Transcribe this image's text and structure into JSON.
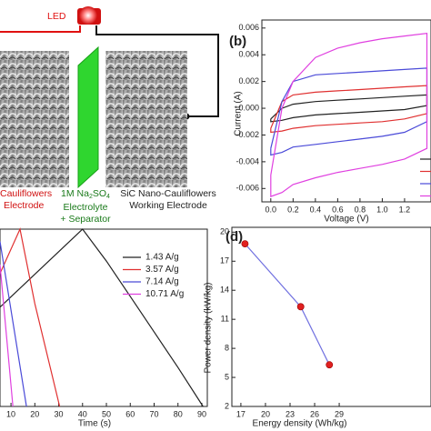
{
  "schematic": {
    "led": "LED",
    "left_electrode": [
      "Cauliflowers",
      "Electrode"
    ],
    "electrolyte": [
      "1M Na",
      "2",
      "SO",
      "4",
      "Electrolyte",
      "+ Separator"
    ],
    "working_electrode": [
      "SiC Nano-Cauliflowers",
      "Working Electrode"
    ]
  },
  "chart_data": [
    {
      "type": "line",
      "panel_label": "(b)",
      "xlabel": "Voltage (V)",
      "ylabel": "Current (A)",
      "xlim": [
        -0.08,
        1.437
      ],
      "ylim": [
        -0.007,
        0.0066
      ],
      "xticks": [
        {
          "value": 0,
          "label": "0.0"
        },
        0.2,
        0.4,
        0.6,
        0.8,
        {
          "value": 1,
          "label": "1.0"
        },
        1.2
      ],
      "yticks": [
        0.006,
        0.004,
        0.002,
        {
          "value": 0,
          "label": "0.000"
        },
        -0.002,
        -0.004,
        -0.006
      ],
      "series": [
        {
          "color": "#222222",
          "x": [
            0,
            0.1,
            0.2,
            0.4,
            0.6,
            0.8,
            1,
            1.2,
            1.4,
            1.4,
            1.2,
            1,
            0.8,
            0.6,
            0.4,
            0.2,
            0.1,
            0,
            0
          ],
          "values": [
            -0.0008,
            0,
            0.0003,
            0.0005,
            0.0006,
            0.0007,
            0.0008,
            0.0009,
            0.001,
            0.0002,
            -0.0001,
            -0.0002,
            -0.0003,
            -0.0004,
            -0.0005,
            -0.0007,
            -0.0009,
            -0.001,
            -0.0008
          ]
        },
        {
          "color": "#e03030",
          "x": [
            0,
            0.1,
            0.2,
            0.4,
            0.6,
            0.8,
            1,
            1.2,
            1.4,
            1.4,
            1.2,
            1,
            0.8,
            0.6,
            0.4,
            0.2,
            0.1,
            0,
            0
          ],
          "values": [
            -0.0015,
            0.0005,
            0.001,
            0.0012,
            0.0013,
            0.0014,
            0.0015,
            0.0016,
            0.0017,
            -0.0004,
            -0.0008,
            -0.001,
            -0.0011,
            -0.0012,
            -0.0013,
            -0.0015,
            -0.0017,
            -0.0018,
            -0.0015
          ]
        },
        {
          "color": "#4a4ad8",
          "x": [
            0,
            0.1,
            0.2,
            0.4,
            0.6,
            0.8,
            1,
            1.2,
            1.4,
            1.4,
            1.2,
            1,
            0.8,
            0.6,
            0.4,
            0.2,
            0.1,
            0,
            0
          ],
          "values": [
            -0.003,
            0.0005,
            0.002,
            0.0025,
            0.0026,
            0.0027,
            0.0028,
            0.0029,
            0.003,
            -0.001,
            -0.0018,
            -0.0021,
            -0.0023,
            -0.0025,
            -0.0027,
            -0.0029,
            -0.0033,
            -0.0035,
            -0.003
          ]
        },
        {
          "color": "#e040e0",
          "x": [
            0,
            0.1,
            0.2,
            0.4,
            0.6,
            0.8,
            1,
            1.2,
            1.4,
            1.4,
            1.2,
            1,
            0.8,
            0.6,
            0.4,
            0.2,
            0.1,
            0,
            0
          ],
          "values": [
            -0.005,
            0,
            0.002,
            0.0038,
            0.0045,
            0.0049,
            0.0052,
            0.0054,
            0.0056,
            -0.003,
            -0.0038,
            -0.0042,
            -0.0045,
            -0.0048,
            -0.0052,
            -0.0057,
            -0.0063,
            -0.0066,
            -0.005
          ]
        }
      ]
    },
    {
      "type": "line",
      "xlabel": "Time (s)",
      "xlim": [
        5.4,
        92.3
      ],
      "ylim": [
        0,
        1
      ],
      "xticks": [
        10,
        20,
        30,
        40,
        50,
        60,
        70,
        80,
        90
      ],
      "series": [
        {
          "name": "1.43 A/g",
          "color": "#222222",
          "x": [
            5.4,
            40,
            50,
            60,
            70,
            80,
            90.5
          ],
          "values": [
            0.56,
            1,
            0.82,
            0.62,
            0.42,
            0.22,
            0
          ]
        },
        {
          "name": "3.57 A/g",
          "color": "#e03030",
          "x": [
            5.4,
            13.8,
            20,
            30.4
          ],
          "values": [
            0.75,
            1,
            0.58,
            0
          ]
        },
        {
          "name": "7.14 A/g",
          "color": "#4a4ad8",
          "x": [
            5.4,
            16.5
          ],
          "values": [
            0.93,
            0
          ]
        },
        {
          "name": "10.71 A/g",
          "color": "#e040e0",
          "x": [
            5.4,
            10.8
          ],
          "values": [
            0.8,
            0
          ]
        }
      ]
    },
    {
      "type": "line",
      "panel_label": "(d)",
      "xlabel": "Energy density (Wh/kg)",
      "ylabel": "Power density (kW/kg)",
      "xlim": [
        15.9,
        40.2
      ],
      "ylim": [
        2,
        20.5
      ],
      "xticks": [
        17,
        20,
        23,
        26,
        29
      ],
      "yticks": [
        2,
        5,
        8,
        11,
        14,
        17,
        20
      ],
      "markers": true,
      "marker_color": "#e02020",
      "series": [
        {
          "color": "#7070e0",
          "x": [
            17.5,
            24.3,
            27.8
          ],
          "values": [
            18.8,
            12.3,
            6.3
          ]
        }
      ]
    }
  ]
}
